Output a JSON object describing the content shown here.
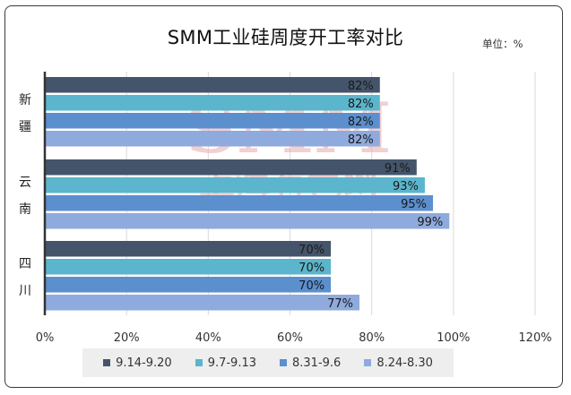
{
  "chart_data": {
    "type": "bar",
    "orientation": "horizontal",
    "title": "SMM工业硅周度开工率对比",
    "unit_label": "单位：%",
    "categories": [
      "新疆",
      "云南",
      "四川"
    ],
    "series": [
      {
        "name": "9.14-9.20",
        "color": "#44546a",
        "values": [
          82,
          91,
          70
        ]
      },
      {
        "name": "9.7-9.13",
        "color": "#5bb5cc",
        "values": [
          82,
          93,
          70
        ]
      },
      {
        "name": "8.31-9.6",
        "color": "#5b8fce",
        "values": [
          82,
          95,
          70
        ]
      },
      {
        "name": "8.24-8.30",
        "color": "#8faadc",
        "values": [
          82,
          99,
          77
        ]
      }
    ],
    "xlim": [
      0,
      120
    ],
    "x_ticks": [
      "0%",
      "20%",
      "40%",
      "60%",
      "80%",
      "100%",
      "120%"
    ],
    "value_suffix": "%",
    "grid": true,
    "legend_position": "bottom"
  },
  "watermark": {
    "line1": "SMM",
    "line2": "上海有色网",
    "color": "#e8a8ad"
  }
}
